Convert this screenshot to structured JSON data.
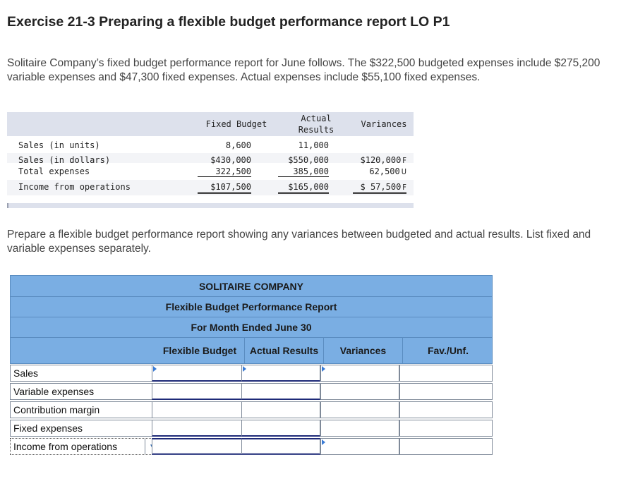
{
  "title": "Exercise 21-3 Preparing a flexible budget performance report LO P1",
  "intro": "Solitaire Company’s fixed budget performance report for June follows. The $322,500 budgeted expenses include $275,200 variable expenses and $47,300 fixed expenses. Actual expenses include $55,100 fixed expenses.",
  "given_report": {
    "headers": {
      "fixed_budget": "Fixed Budget",
      "actual_line1": "Actual",
      "actual_line2": "Results",
      "variances": "Variances"
    },
    "rows": [
      {
        "label": "Sales (in units)",
        "fixed": "8,600",
        "actual": "11,000",
        "variance": "",
        "fu": ""
      },
      {
        "label": "Sales (in dollars)",
        "fixed": "$430,000",
        "actual": "$550,000",
        "variance": "$120,000",
        "fu": "F"
      },
      {
        "label": "Total expenses",
        "fixed": "322,500",
        "actual": "385,000",
        "variance": "62,500",
        "fu": "U"
      },
      {
        "label": "Income from operations",
        "fixed": "$107,500",
        "actual": "$165,000",
        "variance": "$ 57,500",
        "fu": "F"
      }
    ]
  },
  "instructions": "Prepare a flexible budget performance report showing any variances between budgeted and actual results. List fixed and variable expenses separately.",
  "answer_table": {
    "company": "SOLITAIRE COMPANY",
    "report": "Flexible Budget Performance Report",
    "period": "For Month Ended June 30",
    "columns": [
      "Flexible Budget",
      "Actual Results",
      "Variances",
      "Fav./Unf."
    ],
    "rows": [
      "Sales",
      "Variable expenses",
      "Contribution margin",
      "Fixed expenses",
      "Income from operations"
    ],
    "dropdown_icon": "chevron-down-icon",
    "accent_color": "#7aaee3"
  }
}
